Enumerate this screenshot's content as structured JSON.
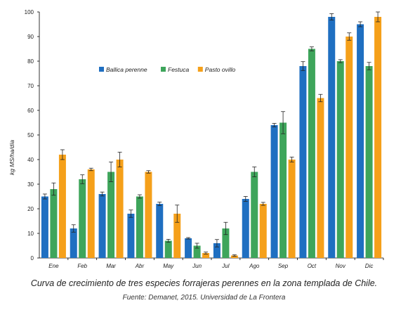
{
  "chart_data": {
    "type": "bar",
    "ylabel": "kg MS/ha/día",
    "xlabel": "",
    "ylim": [
      0,
      100
    ],
    "yticks": [
      0,
      10,
      20,
      30,
      40,
      50,
      60,
      70,
      80,
      90,
      100
    ],
    "legend_position": "upper-left",
    "grid": false,
    "categories": [
      "Ene",
      "Feb",
      "Mar",
      "Abr",
      "May",
      "Jun",
      "Jul",
      "Ago",
      "Sep",
      "Oct",
      "Nov",
      "Dic"
    ],
    "series": [
      {
        "name": "Ballica perenne",
        "color": "#1f6fc1",
        "values": [
          25,
          12,
          26,
          18,
          22,
          8,
          6,
          24,
          54,
          78,
          98,
          95
        ],
        "errors": [
          1,
          1.5,
          0.8,
          1.5,
          0.7,
          0.3,
          1.5,
          1,
          0.7,
          1.8,
          1.3,
          1
        ]
      },
      {
        "name": "Festuca",
        "color": "#3ea55b",
        "values": [
          28,
          32,
          35,
          25,
          7,
          5,
          12,
          35,
          55,
          85,
          80,
          78
        ],
        "errors": [
          2.5,
          1.8,
          4,
          0.7,
          0.6,
          1,
          2.5,
          2,
          4.5,
          0.8,
          0.6,
          1.5
        ]
      },
      {
        "name": "Pasto ovillo",
        "color": "#f5a01a",
        "values": [
          42,
          36,
          40,
          35,
          18,
          2,
          1,
          22,
          40,
          65,
          90,
          98
        ],
        "errors": [
          2,
          0.5,
          3,
          0.5,
          3.5,
          0.4,
          0.3,
          0.6,
          1,
          1.5,
          1.5,
          2
        ]
      }
    ]
  },
  "caption": {
    "main": "Curva de crecimiento de tres especies forrajeras perennes en la zona templada de Chile.",
    "source": "Fuente: Demanet, 2015. Universidad de La Frontera"
  }
}
